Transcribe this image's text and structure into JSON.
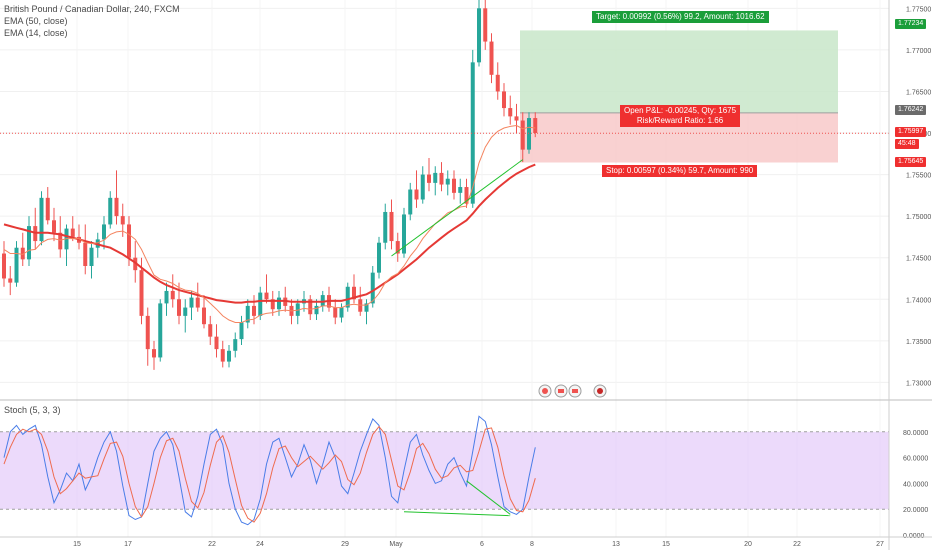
{
  "legend": {
    "symbol": "British Pound / Canadian Dollar, 240, FXCM",
    "ema50": "EMA (50, close)",
    "ema14": "EMA (14, close)",
    "stoch": "Stoch (5, 3, 3)"
  },
  "position": {
    "target_text": "Target: 0.00992 (0.56%) 99.2, Amount: 1016.62",
    "pnl_text": "Open P&L: -0.00245, Qty: 1675",
    "rr_text": "Risk/Reward Ratio: 1.66",
    "stop_text": "Stop: 0.00597 (0.34%) 59.7, Amount: 990",
    "target_price": 1.77234,
    "entry_price": 1.76242,
    "stop_price": 1.75645,
    "current_price": 1.75997
  },
  "price_tags": {
    "target": "1.77234",
    "entry": "1.76242",
    "current": "1.75997",
    "countdown": "45:48",
    "stop": "1.75645"
  },
  "colors": {
    "up": "#26a69a",
    "down": "#ef5350",
    "ema50": "#e53935",
    "ema14": "#f4845f",
    "target_fill": "#c8e6c9",
    "stop_fill": "#f8c9c9",
    "stoch_k": "#4a7de8",
    "stoch_d": "#ef6b4f",
    "stoch_band": "#e5cdfa",
    "trend": "#22c22e"
  },
  "chart_data": [
    {
      "type": "candlestick",
      "title": "British Pound / Canadian Dollar, 240, FXCM",
      "ylim": [
        1.728,
        1.776
      ],
      "y_ticks": [
        "1.77500",
        "1.77000",
        "1.76500",
        "1.76000",
        "1.75500",
        "1.75000",
        "1.74500",
        "1.74000",
        "1.73500",
        "1.73000"
      ],
      "x_ticks": [
        "15",
        "17",
        "22",
        "24",
        "29",
        "May",
        "6",
        "8",
        "13",
        "15",
        "20",
        "22",
        "27"
      ],
      "ohlc": [
        [
          1.7455,
          1.747,
          1.7415,
          1.7425
        ],
        [
          1.7425,
          1.744,
          1.7405,
          1.742
        ],
        [
          1.742,
          1.747,
          1.7415,
          1.7462
        ],
        [
          1.7462,
          1.748,
          1.744,
          1.7448
        ],
        [
          1.7448,
          1.75,
          1.744,
          1.7488
        ],
        [
          1.7488,
          1.751,
          1.746,
          1.747
        ],
        [
          1.747,
          1.753,
          1.7465,
          1.7522
        ],
        [
          1.7522,
          1.7535,
          1.749,
          1.7495
        ],
        [
          1.7495,
          1.751,
          1.747,
          1.748
        ],
        [
          1.748,
          1.75,
          1.745,
          1.746
        ],
        [
          1.746,
          1.749,
          1.744,
          1.7485
        ],
        [
          1.7485,
          1.75,
          1.747,
          1.7475
        ],
        [
          1.7475,
          1.749,
          1.746,
          1.7468
        ],
        [
          1.7468,
          1.749,
          1.743,
          1.744
        ],
        [
          1.744,
          1.747,
          1.7425,
          1.7462
        ],
        [
          1.7462,
          1.748,
          1.745,
          1.7472
        ],
        [
          1.7472,
          1.75,
          1.746,
          1.749
        ],
        [
          1.749,
          1.753,
          1.7485,
          1.7522
        ],
        [
          1.7522,
          1.7555,
          1.749,
          1.75
        ],
        [
          1.75,
          1.7515,
          1.7475,
          1.749
        ],
        [
          1.749,
          1.75,
          1.744,
          1.745
        ],
        [
          1.745,
          1.747,
          1.742,
          1.7435
        ],
        [
          1.7435,
          1.745,
          1.737,
          1.738
        ],
        [
          1.738,
          1.739,
          1.732,
          1.734
        ],
        [
          1.734,
          1.735,
          1.7315,
          1.733
        ],
        [
          1.733,
          1.74,
          1.7325,
          1.7395
        ],
        [
          1.7395,
          1.742,
          1.738,
          1.741
        ],
        [
          1.741,
          1.743,
          1.739,
          1.74
        ],
        [
          1.74,
          1.742,
          1.737,
          1.738
        ],
        [
          1.738,
          1.74,
          1.736,
          1.739
        ],
        [
          1.739,
          1.741,
          1.7375,
          1.7402
        ],
        [
          1.7402,
          1.742,
          1.7385,
          1.739
        ],
        [
          1.739,
          1.7405,
          1.7365,
          1.737
        ],
        [
          1.737,
          1.738,
          1.7345,
          1.7355
        ],
        [
          1.7355,
          1.737,
          1.733,
          1.734
        ],
        [
          1.734,
          1.735,
          1.7318,
          1.7325
        ],
        [
          1.7325,
          1.7345,
          1.7318,
          1.7338
        ],
        [
          1.7338,
          1.736,
          1.733,
          1.7352
        ],
        [
          1.7352,
          1.738,
          1.7345,
          1.7372
        ],
        [
          1.7372,
          1.74,
          1.7365,
          1.7392
        ],
        [
          1.7392,
          1.7405,
          1.737,
          1.738
        ],
        [
          1.738,
          1.7415,
          1.7375,
          1.7408
        ],
        [
          1.7408,
          1.743,
          1.7395,
          1.74
        ],
        [
          1.74,
          1.741,
          1.738,
          1.7388
        ],
        [
          1.7388,
          1.741,
          1.738,
          1.7402
        ],
        [
          1.7402,
          1.7415,
          1.7385,
          1.7392
        ],
        [
          1.7392,
          1.74,
          1.737,
          1.738
        ],
        [
          1.738,
          1.74,
          1.737,
          1.7395
        ],
        [
          1.7395,
          1.741,
          1.7385,
          1.74
        ],
        [
          1.74,
          1.7405,
          1.7375,
          1.7382
        ],
        [
          1.7382,
          1.74,
          1.7375,
          1.7392
        ],
        [
          1.7392,
          1.741,
          1.7385,
          1.7405
        ],
        [
          1.7405,
          1.7415,
          1.7385,
          1.739
        ],
        [
          1.739,
          1.74,
          1.737,
          1.7378
        ],
        [
          1.7378,
          1.7395,
          1.7372,
          1.739
        ],
        [
          1.739,
          1.742,
          1.7385,
          1.7415
        ],
        [
          1.7415,
          1.743,
          1.7395,
          1.74
        ],
        [
          1.74,
          1.7415,
          1.738,
          1.7385
        ],
        [
          1.7385,
          1.74,
          1.737,
          1.7395
        ],
        [
          1.7395,
          1.744,
          1.739,
          1.7432
        ],
        [
          1.7432,
          1.7475,
          1.7425,
          1.7468
        ],
        [
          1.7468,
          1.7515,
          1.746,
          1.7505
        ],
        [
          1.7505,
          1.752,
          1.746,
          1.747
        ],
        [
          1.747,
          1.748,
          1.7445,
          1.7455
        ],
        [
          1.7455,
          1.751,
          1.745,
          1.7502
        ],
        [
          1.7502,
          1.754,
          1.7495,
          1.7532
        ],
        [
          1.7532,
          1.7555,
          1.751,
          1.752
        ],
        [
          1.752,
          1.756,
          1.7515,
          1.755
        ],
        [
          1.755,
          1.757,
          1.753,
          1.754
        ],
        [
          1.754,
          1.756,
          1.7525,
          1.7552
        ],
        [
          1.7552,
          1.7565,
          1.753,
          1.7538
        ],
        [
          1.7538,
          1.7555,
          1.7525,
          1.7545
        ],
        [
          1.7545,
          1.7555,
          1.752,
          1.7528
        ],
        [
          1.7528,
          1.7545,
          1.7515,
          1.7535
        ],
        [
          1.7535,
          1.7545,
          1.751,
          1.7515
        ],
        [
          1.7515,
          1.77,
          1.751,
          1.7685
        ],
        [
          1.7685,
          1.776,
          1.768,
          1.775
        ],
        [
          1.775,
          1.776,
          1.77,
          1.771
        ],
        [
          1.771,
          1.772,
          1.766,
          1.767
        ],
        [
          1.767,
          1.7685,
          1.764,
          1.765
        ],
        [
          1.765,
          1.766,
          1.762,
          1.763
        ],
        [
          1.763,
          1.7645,
          1.761,
          1.762
        ],
        [
          1.762,
          1.7635,
          1.76,
          1.7615
        ],
        [
          1.7615,
          1.7625,
          1.7565,
          1.758
        ],
        [
          1.758,
          1.7625,
          1.7575,
          1.7618
        ],
        [
          1.7618,
          1.7625,
          1.7595,
          1.76
        ]
      ],
      "series": [
        {
          "name": "EMA (50, close)",
          "values": [
            1.749,
            1.7488,
            1.7486,
            1.7484,
            1.7482,
            1.748,
            1.748,
            1.748,
            1.7479,
            1.7478,
            1.7476,
            1.7474,
            1.7472,
            1.747,
            1.7468,
            1.7466,
            1.7464,
            1.7462,
            1.7458,
            1.7454,
            1.7449,
            1.7444,
            1.7438,
            1.7432,
            1.7426,
            1.7421,
            1.7417,
            1.7414,
            1.7411,
            1.7409,
            1.7407,
            1.7405,
            1.7403,
            1.7401,
            1.7399,
            1.7398,
            1.7397,
            1.7396,
            1.7396,
            1.7397,
            1.7397,
            1.7398,
            1.7398,
            1.7398,
            1.7398,
            1.7398,
            1.7397,
            1.7397,
            1.7397,
            1.7397,
            1.7397,
            1.7397,
            1.7398,
            1.7398,
            1.7398,
            1.74,
            1.7402,
            1.7404,
            1.7406,
            1.741,
            1.7415,
            1.742,
            1.7425,
            1.743,
            1.7436,
            1.7442,
            1.7448,
            1.7455,
            1.7462,
            1.7468,
            1.7474,
            1.748,
            1.7485,
            1.749,
            1.7495,
            1.7503,
            1.7512,
            1.752,
            1.7527,
            1.7534,
            1.754,
            1.7546,
            1.7551,
            1.7555,
            1.7559,
            1.7562
          ]
        },
        {
          "name": "EMA (14, close)",
          "values": [
            1.746,
            1.7455,
            1.7455,
            1.7454,
            1.7459,
            1.746,
            1.7468,
            1.7472,
            1.7473,
            1.7471,
            1.7473,
            1.7473,
            1.7473,
            1.7468,
            1.7467,
            1.7468,
            1.7471,
            1.7478,
            1.7481,
            1.7482,
            1.7478,
            1.7472,
            1.746,
            1.7444,
            1.7429,
            1.7424,
            1.7422,
            1.7419,
            1.7414,
            1.7411,
            1.741,
            1.7407,
            1.7402,
            1.7395,
            1.7388,
            1.738,
            1.7375,
            1.7372,
            1.7372,
            1.7375,
            1.7376,
            1.7381,
            1.7383,
            1.7384,
            1.7386,
            1.7387,
            1.7386,
            1.7387,
            1.7389,
            1.7388,
            1.7389,
            1.7392,
            1.7392,
            1.739,
            1.739,
            1.7393,
            1.7394,
            1.7393,
            1.7393,
            1.7398,
            1.7407,
            1.742,
            1.7427,
            1.7431,
            1.744,
            1.7452,
            1.7461,
            1.7473,
            1.7482,
            1.7491,
            1.7497,
            1.7504,
            1.7507,
            1.7511,
            1.7512,
            1.7535,
            1.7564,
            1.7583,
            1.7595,
            1.7602,
            1.7606,
            1.7608,
            1.7609,
            1.7605,
            1.7607,
            1.7606
          ]
        }
      ]
    },
    {
      "type": "line",
      "title": "Stoch (5, 3, 3)",
      "ylim": [
        0,
        100
      ],
      "y_ticks": [
        "80.0000",
        "60.0000",
        "40.0000",
        "20.0000",
        "0.0000"
      ],
      "bands": [
        20,
        80
      ],
      "series": [
        {
          "name": "%K",
          "values": [
            60,
            80,
            85,
            78,
            82,
            85,
            70,
            45,
            25,
            35,
            48,
            42,
            55,
            35,
            45,
            60,
            72,
            80,
            65,
            38,
            15,
            12,
            14,
            40,
            65,
            75,
            80,
            70,
            45,
            18,
            14,
            30,
            55,
            78,
            82,
            70,
            40,
            20,
            10,
            8,
            12,
            28,
            55,
            72,
            75,
            60,
            45,
            55,
            70,
            58,
            40,
            55,
            72,
            60,
            38,
            32,
            48,
            65,
            78,
            90,
            85,
            60,
            30,
            25,
            50,
            72,
            78,
            62,
            50,
            40,
            42,
            55,
            60,
            48,
            38,
            65,
            92,
            88,
            70,
            45,
            22,
            18,
            16,
            20,
            45,
            68
          ]
        },
        {
          "name": "%D",
          "values": [
            55,
            68,
            78,
            82,
            80,
            82,
            78,
            65,
            45,
            32,
            36,
            42,
            48,
            44,
            45,
            46,
            59,
            71,
            72,
            61,
            40,
            22,
            14,
            22,
            40,
            60,
            73,
            75,
            65,
            44,
            26,
            21,
            33,
            54,
            72,
            77,
            64,
            43,
            23,
            13,
            10,
            17,
            32,
            52,
            67,
            69,
            60,
            53,
            57,
            61,
            56,
            51,
            56,
            62,
            57,
            43,
            39,
            48,
            64,
            78,
            84,
            78,
            58,
            38,
            35,
            49,
            67,
            71,
            63,
            51,
            44,
            46,
            52,
            54,
            49,
            50,
            65,
            82,
            83,
            68,
            46,
            28,
            19,
            18,
            27,
            44
          ]
        }
      ]
    }
  ]
}
